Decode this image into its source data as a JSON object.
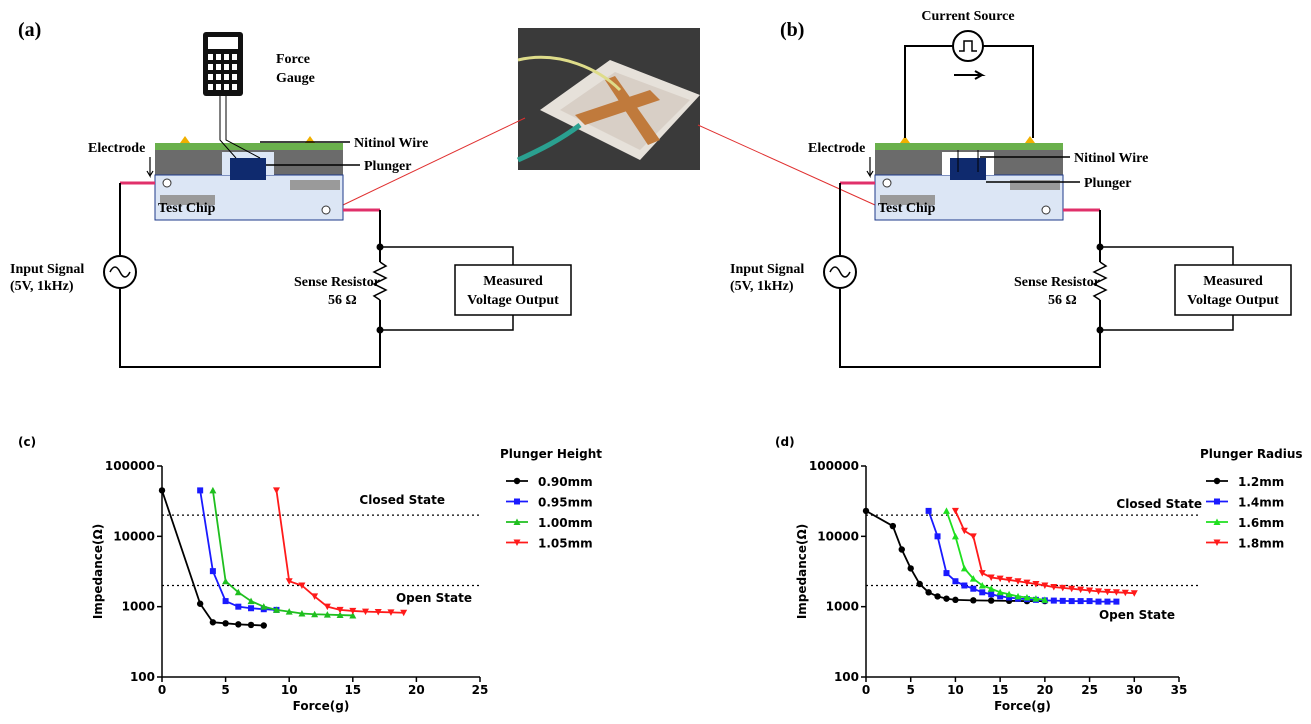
{
  "panels": {
    "a": "(a)",
    "b": "(b)"
  },
  "diagram_a": {
    "force_gauge": [
      "Force",
      "Gauge"
    ],
    "nitinol_wire": "Nitinol Wire",
    "plunger": "Plunger",
    "electrode": "Electrode",
    "test_chip": "Test Chip",
    "input_signal": [
      "Input Signal",
      "(5V, 1kHz)"
    ],
    "sense_resistor": [
      "Sense Resistor",
      "56 Ω"
    ],
    "output": [
      "Measured",
      "Voltage Output"
    ]
  },
  "diagram_b": {
    "current_source": "Current Source",
    "nitinol_wire": "Nitinol Wire",
    "plunger": "Plunger",
    "electrode": "Electrode",
    "test_chip": "Test Chip",
    "input_signal": [
      "Input Signal",
      "(5V, 1kHz)"
    ],
    "sense_resistor": [
      "Sense Resistor",
      "56 Ω"
    ],
    "output": [
      "Measured",
      "Voltage Output"
    ]
  },
  "chart_data": [
    {
      "type": "line",
      "panel_label": "(c)",
      "xlabel": "Force(g)",
      "ylabel": "Impedance(Ω)",
      "log_y": true,
      "xlim": [
        0,
        25
      ],
      "xticks": [
        0,
        5,
        10,
        15,
        20,
        25
      ],
      "ylim": [
        100,
        100000
      ],
      "yticks": [
        100,
        1000,
        10000,
        100000
      ],
      "legend_title": "Plunger Height",
      "reference_lines": [
        {
          "value": 20000,
          "label": "Closed State"
        },
        {
          "value": 2000,
          "label": "Open State"
        }
      ],
      "series": [
        {
          "name": "0.90mm",
          "color": "#000000",
          "marker": "circle",
          "x": [
            0,
            3,
            4,
            5,
            6,
            7,
            8
          ],
          "values": [
            45000,
            1100,
            600,
            580,
            560,
            550,
            540
          ]
        },
        {
          "name": "0.95mm",
          "color": "#1a1aff",
          "marker": "square",
          "x": [
            3,
            4,
            5,
            6,
            7,
            8,
            9
          ],
          "values": [
            45000,
            3200,
            1200,
            1000,
            950,
            920,
            900
          ]
        },
        {
          "name": "1.00mm",
          "color": "#1fbf1f",
          "marker": "triangle-up",
          "x": [
            4,
            5,
            6,
            7,
            8,
            9,
            10,
            11,
            12,
            13,
            14,
            15
          ],
          "values": [
            45000,
            2300,
            1600,
            1200,
            1000,
            900,
            850,
            800,
            780,
            770,
            760,
            750
          ]
        },
        {
          "name": "1.05mm",
          "color": "#ff1a1a",
          "marker": "triangle-down",
          "x": [
            9,
            10,
            11,
            12,
            13,
            14,
            15,
            16,
            17,
            18,
            19
          ],
          "values": [
            45000,
            2300,
            2000,
            1400,
            1000,
            900,
            870,
            850,
            840,
            830,
            820
          ]
        }
      ]
    },
    {
      "type": "line",
      "panel_label": "(d)",
      "xlabel": "Force(g)",
      "ylabel": "Impedance(Ω)",
      "log_y": true,
      "xlim": [
        0,
        35
      ],
      "xticks": [
        0,
        5,
        10,
        15,
        20,
        25,
        30,
        35
      ],
      "ylim": [
        100,
        100000
      ],
      "yticks": [
        100,
        1000,
        10000,
        100000
      ],
      "legend_title": "Plunger Radius",
      "reference_lines": [
        {
          "value": 20000,
          "label": "Closed State"
        },
        {
          "value": 2000,
          "label": "Open State"
        }
      ],
      "series": [
        {
          "name": "1.2mm",
          "color": "#000000",
          "marker": "circle",
          "x": [
            0,
            3,
            4,
            5,
            6,
            7,
            8,
            9,
            10,
            12,
            14,
            16,
            18,
            20
          ],
          "values": [
            23000,
            14000,
            6500,
            3500,
            2100,
            1600,
            1400,
            1300,
            1250,
            1230,
            1220,
            1210,
            1200,
            1200
          ]
        },
        {
          "name": "1.4mm",
          "color": "#1a1aff",
          "marker": "square",
          "x": [
            7,
            8,
            9,
            10,
            11,
            12,
            13,
            14,
            15,
            16,
            17,
            18,
            19,
            20,
            21,
            22,
            23,
            24,
            25,
            26,
            27,
            28
          ],
          "values": [
            23000,
            10000,
            3000,
            2300,
            2000,
            1800,
            1600,
            1500,
            1400,
            1350,
            1300,
            1280,
            1250,
            1230,
            1220,
            1210,
            1200,
            1200,
            1200,
            1180,
            1180,
            1180
          ]
        },
        {
          "name": "1.6mm",
          "color": "#1fdf1f",
          "marker": "triangle-up",
          "x": [
            9,
            10,
            11,
            12,
            13,
            14,
            15,
            16,
            17,
            18,
            19,
            20
          ],
          "values": [
            23000,
            10000,
            3500,
            2500,
            2000,
            1800,
            1600,
            1500,
            1400,
            1350,
            1300,
            1250
          ]
        },
        {
          "name": "1.8mm",
          "color": "#ff1a1a",
          "marker": "triangle-down",
          "x": [
            10,
            11,
            12,
            13,
            14,
            15,
            16,
            17,
            18,
            19,
            20,
            21,
            22,
            23,
            24,
            25,
            26,
            27,
            28,
            29,
            30
          ],
          "values": [
            23000,
            12000,
            10000,
            3000,
            2600,
            2500,
            2400,
            2300,
            2200,
            2100,
            2000,
            1900,
            1850,
            1800,
            1750,
            1700,
            1650,
            1620,
            1600,
            1580,
            1550
          ]
        }
      ]
    }
  ]
}
